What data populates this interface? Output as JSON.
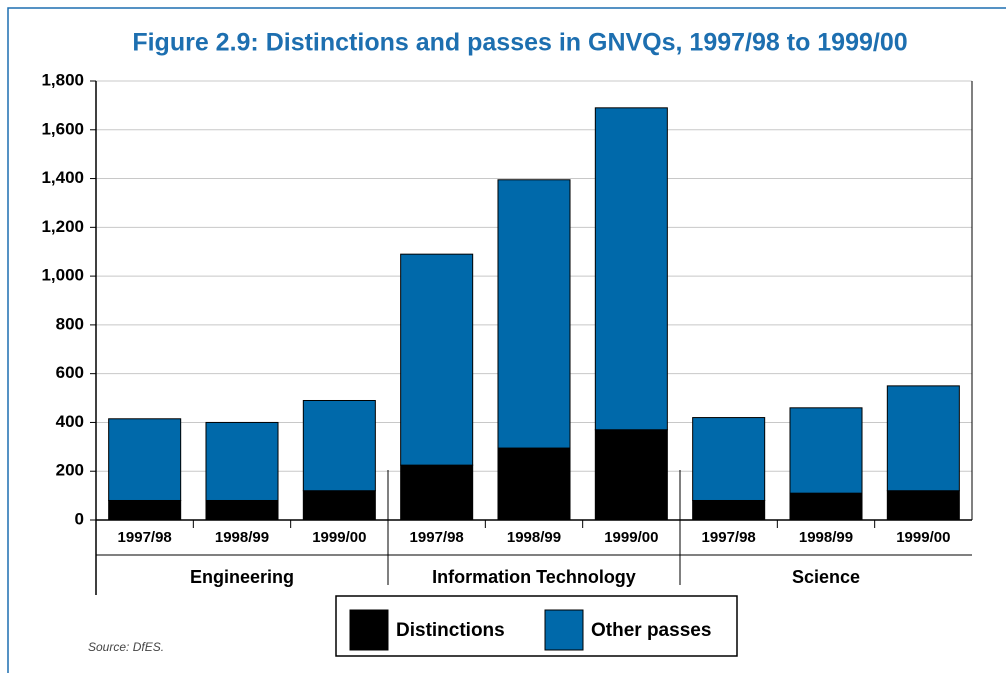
{
  "chart_data": {
    "type": "stacked_bar",
    "title": "Figure 2.9: Distinctions and passes in GNVQs, 1997/98 to 1999/00",
    "categories": [
      "1997/98",
      "1998/99",
      "1999/00",
      "1997/98",
      "1998/99",
      "1999/00",
      "1997/98",
      "1998/99",
      "1999/00"
    ],
    "groups": [
      "Engineering",
      "Information Technology",
      "Science"
    ],
    "series": [
      {
        "name": "Distinctions",
        "color": "#000000",
        "values": [
          80,
          80,
          120,
          225,
          295,
          370,
          80,
          110,
          120
        ]
      },
      {
        "name": "Other passes",
        "color": "#0069aa",
        "values": [
          335,
          320,
          370,
          865,
          1100,
          1320,
          340,
          350,
          430
        ]
      }
    ],
    "ylim": [
      0,
      1800
    ],
    "yticks": [
      0,
      200,
      400,
      600,
      800,
      {
        "value": 1000,
        "label": "1,000"
      },
      {
        "value": 1200,
        "label": "1,200"
      },
      {
        "value": 1400,
        "label": "1,400"
      },
      {
        "value": 1600,
        "label": "1,600"
      },
      {
        "value": 1800,
        "label": "1,800"
      }
    ],
    "grid": true,
    "source": "Source: DfES."
  }
}
